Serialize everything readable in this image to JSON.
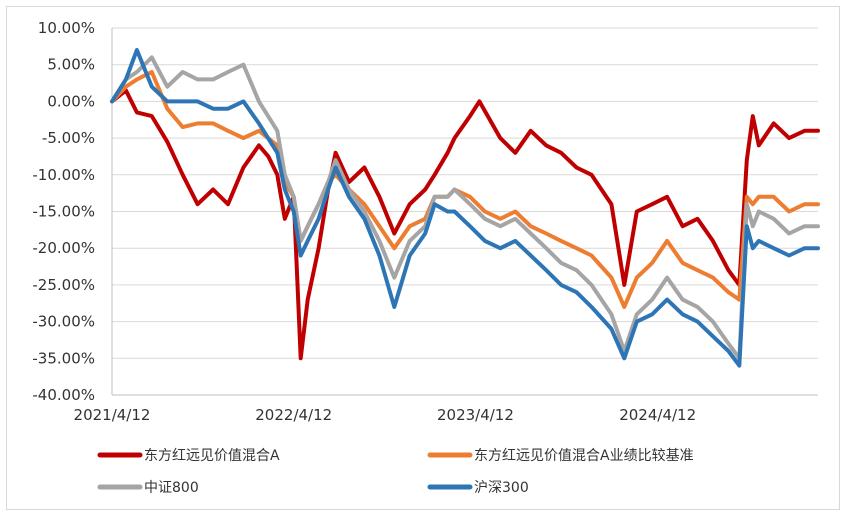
{
  "chart_data": {
    "type": "line",
    "title": "",
    "xlabel": "",
    "ylabel": "",
    "ylim": [
      -40,
      10
    ],
    "y_ticks": [
      10,
      5,
      0,
      -5,
      -10,
      -15,
      -20,
      -25,
      -30,
      -35,
      -40
    ],
    "y_tick_labels": [
      "10.00%",
      "5.00%",
      "0.00%",
      "-5.00%",
      "-10.00%",
      "-15.00%",
      "-20.00%",
      "-25.00%",
      "-30.00%",
      "-35.00%",
      "-40.00%"
    ],
    "x_range": [
      "2021-04-12",
      "2025-02-28"
    ],
    "x_ticks": [
      "2021-04-12",
      "2022-04-12",
      "2023-04-12",
      "2024-04-12"
    ],
    "x_tick_labels": [
      "2021/4/12",
      "2022/4/12",
      "2023/4/12",
      "2024/4/12"
    ],
    "grid": "horizontal",
    "legend_position": "bottom",
    "series": [
      {
        "name": "东方红远见价值混合A",
        "color": "#c00000",
        "points": [
          [
            "2021-04-12",
            0
          ],
          [
            "2021-05-10",
            1.5
          ],
          [
            "2021-06-01",
            -1.5
          ],
          [
            "2021-07-01",
            -2
          ],
          [
            "2021-08-01",
            -5.5
          ],
          [
            "2021-09-01",
            -10
          ],
          [
            "2021-10-01",
            -14
          ],
          [
            "2021-11-01",
            -12
          ],
          [
            "2021-12-01",
            -14
          ],
          [
            "2022-01-01",
            -9
          ],
          [
            "2022-02-01",
            -6
          ],
          [
            "2022-02-20",
            -7.5
          ],
          [
            "2022-03-10",
            -10
          ],
          [
            "2022-03-25",
            -16
          ],
          [
            "2022-04-12",
            -13
          ],
          [
            "2022-04-26",
            -35
          ],
          [
            "2022-05-10",
            -27
          ],
          [
            "2022-06-01",
            -20
          ],
          [
            "2022-06-20",
            -12
          ],
          [
            "2022-07-05",
            -7
          ],
          [
            "2022-08-01",
            -11
          ],
          [
            "2022-09-01",
            -9
          ],
          [
            "2022-10-01",
            -13
          ],
          [
            "2022-10-31",
            -18
          ],
          [
            "2022-12-01",
            -14
          ],
          [
            "2023-01-01",
            -12
          ],
          [
            "2023-01-20",
            -10
          ],
          [
            "2023-02-15",
            -7
          ],
          [
            "2023-03-01",
            -5
          ],
          [
            "2023-04-01",
            -2
          ],
          [
            "2023-04-20",
            0
          ],
          [
            "2023-05-15",
            -3
          ],
          [
            "2023-06-01",
            -5
          ],
          [
            "2023-07-01",
            -7
          ],
          [
            "2023-08-01",
            -4
          ],
          [
            "2023-09-01",
            -6
          ],
          [
            "2023-10-01",
            -7
          ],
          [
            "2023-11-01",
            -9
          ],
          [
            "2023-12-01",
            -10
          ],
          [
            "2024-01-10",
            -14
          ],
          [
            "2024-02-05",
            -25
          ],
          [
            "2024-03-01",
            -15
          ],
          [
            "2024-04-01",
            -14
          ],
          [
            "2024-05-01",
            -13
          ],
          [
            "2024-06-01",
            -17
          ],
          [
            "2024-07-01",
            -16
          ],
          [
            "2024-08-01",
            -19
          ],
          [
            "2024-09-01",
            -23
          ],
          [
            "2024-09-23",
            -25
          ],
          [
            "2024-10-08",
            -8
          ],
          [
            "2024-10-20",
            -2
          ],
          [
            "2024-11-01",
            -6
          ],
          [
            "2024-12-01",
            -3
          ],
          [
            "2025-01-01",
            -5
          ],
          [
            "2025-02-01",
            -4
          ],
          [
            "2025-02-28",
            -4
          ]
        ]
      },
      {
        "name": "东方红远见价值混合A业绩比较基准",
        "color": "#ed7d31",
        "points": [
          [
            "2021-04-12",
            0
          ],
          [
            "2021-05-10",
            2
          ],
          [
            "2021-06-01",
            3
          ],
          [
            "2021-07-01",
            4
          ],
          [
            "2021-08-01",
            -1
          ],
          [
            "2021-09-01",
            -3.5
          ],
          [
            "2021-10-01",
            -3
          ],
          [
            "2021-11-01",
            -3
          ],
          [
            "2021-12-01",
            -4
          ],
          [
            "2022-01-01",
            -5
          ],
          [
            "2022-02-01",
            -4
          ],
          [
            "2022-03-10",
            -6
          ],
          [
            "2022-03-25",
            -11
          ],
          [
            "2022-04-12",
            -13
          ],
          [
            "2022-04-26",
            -19
          ],
          [
            "2022-05-10",
            -17
          ],
          [
            "2022-06-01",
            -14
          ],
          [
            "2022-06-20",
            -11
          ],
          [
            "2022-07-05",
            -10
          ],
          [
            "2022-08-01",
            -12
          ],
          [
            "2022-09-01",
            -14
          ],
          [
            "2022-10-01",
            -17
          ],
          [
            "2022-10-31",
            -20
          ],
          [
            "2022-12-01",
            -17
          ],
          [
            "2023-01-01",
            -16
          ],
          [
            "2023-01-20",
            -13
          ],
          [
            "2023-02-15",
            -13
          ],
          [
            "2023-03-01",
            -12
          ],
          [
            "2023-04-01",
            -13
          ],
          [
            "2023-05-01",
            -15
          ],
          [
            "2023-06-01",
            -16
          ],
          [
            "2023-07-01",
            -15
          ],
          [
            "2023-08-01",
            -17
          ],
          [
            "2023-09-01",
            -18
          ],
          [
            "2023-10-01",
            -19
          ],
          [
            "2023-11-01",
            -20
          ],
          [
            "2023-12-01",
            -21
          ],
          [
            "2024-01-10",
            -24
          ],
          [
            "2024-02-05",
            -28
          ],
          [
            "2024-03-01",
            -24
          ],
          [
            "2024-04-01",
            -22
          ],
          [
            "2024-05-01",
            -19
          ],
          [
            "2024-06-01",
            -22
          ],
          [
            "2024-07-01",
            -23
          ],
          [
            "2024-08-01",
            -24
          ],
          [
            "2024-09-01",
            -26
          ],
          [
            "2024-09-23",
            -27
          ],
          [
            "2024-10-08",
            -13
          ],
          [
            "2024-10-20",
            -14
          ],
          [
            "2024-11-01",
            -13
          ],
          [
            "2024-12-01",
            -13
          ],
          [
            "2025-01-01",
            -15
          ],
          [
            "2025-02-01",
            -14
          ],
          [
            "2025-02-28",
            -14
          ]
        ]
      },
      {
        "name": "中证800",
        "color": "#a5a5a5",
        "points": [
          [
            "2021-04-12",
            0
          ],
          [
            "2021-05-10",
            3
          ],
          [
            "2021-06-01",
            4
          ],
          [
            "2021-07-01",
            6
          ],
          [
            "2021-08-01",
            2
          ],
          [
            "2021-09-01",
            4
          ],
          [
            "2021-10-01",
            3
          ],
          [
            "2021-11-01",
            3
          ],
          [
            "2021-12-01",
            4
          ],
          [
            "2022-01-01",
            5
          ],
          [
            "2022-02-01",
            0
          ],
          [
            "2022-03-10",
            -4
          ],
          [
            "2022-03-25",
            -10
          ],
          [
            "2022-04-12",
            -13
          ],
          [
            "2022-04-26",
            -19
          ],
          [
            "2022-05-10",
            -17
          ],
          [
            "2022-06-01",
            -14
          ],
          [
            "2022-06-20",
            -11
          ],
          [
            "2022-07-05",
            -8
          ],
          [
            "2022-08-01",
            -12
          ],
          [
            "2022-09-01",
            -15
          ],
          [
            "2022-10-01",
            -19
          ],
          [
            "2022-10-31",
            -24
          ],
          [
            "2022-12-01",
            -19
          ],
          [
            "2023-01-01",
            -17
          ],
          [
            "2023-01-20",
            -13
          ],
          [
            "2023-02-15",
            -13
          ],
          [
            "2023-03-01",
            -12
          ],
          [
            "2023-04-01",
            -14
          ],
          [
            "2023-05-01",
            -16
          ],
          [
            "2023-06-01",
            -17
          ],
          [
            "2023-07-01",
            -16
          ],
          [
            "2023-08-01",
            -18
          ],
          [
            "2023-09-01",
            -20
          ],
          [
            "2023-10-01",
            -22
          ],
          [
            "2023-11-01",
            -23
          ],
          [
            "2023-12-01",
            -25
          ],
          [
            "2024-01-10",
            -29
          ],
          [
            "2024-02-05",
            -34
          ],
          [
            "2024-03-01",
            -29
          ],
          [
            "2024-04-01",
            -27
          ],
          [
            "2024-05-01",
            -24
          ],
          [
            "2024-06-01",
            -27
          ],
          [
            "2024-07-01",
            -28
          ],
          [
            "2024-08-01",
            -30
          ],
          [
            "2024-09-01",
            -33
          ],
          [
            "2024-09-23",
            -35
          ],
          [
            "2024-10-08",
            -14
          ],
          [
            "2024-10-20",
            -17
          ],
          [
            "2024-11-01",
            -15
          ],
          [
            "2024-12-01",
            -16
          ],
          [
            "2025-01-01",
            -18
          ],
          [
            "2025-02-01",
            -17
          ],
          [
            "2025-02-28",
            -17
          ]
        ]
      },
      {
        "name": "沪深300",
        "color": "#2e75b6",
        "points": [
          [
            "2021-04-12",
            0
          ],
          [
            "2021-05-10",
            3
          ],
          [
            "2021-06-01",
            7
          ],
          [
            "2021-07-01",
            2
          ],
          [
            "2021-08-01",
            0
          ],
          [
            "2021-09-01",
            0
          ],
          [
            "2021-10-01",
            0
          ],
          [
            "2021-11-01",
            -1
          ],
          [
            "2021-12-01",
            -1
          ],
          [
            "2022-01-01",
            0
          ],
          [
            "2022-02-01",
            -3
          ],
          [
            "2022-03-10",
            -7
          ],
          [
            "2022-03-25",
            -12
          ],
          [
            "2022-04-12",
            -15
          ],
          [
            "2022-04-26",
            -21
          ],
          [
            "2022-05-10",
            -19
          ],
          [
            "2022-06-01",
            -16
          ],
          [
            "2022-06-20",
            -12
          ],
          [
            "2022-07-05",
            -9
          ],
          [
            "2022-08-01",
            -13
          ],
          [
            "2022-09-01",
            -16
          ],
          [
            "2022-10-01",
            -21
          ],
          [
            "2022-10-31",
            -28
          ],
          [
            "2022-12-01",
            -21
          ],
          [
            "2023-01-01",
            -18
          ],
          [
            "2023-01-20",
            -14
          ],
          [
            "2023-02-15",
            -15
          ],
          [
            "2023-03-01",
            -15
          ],
          [
            "2023-04-01",
            -17
          ],
          [
            "2023-05-01",
            -19
          ],
          [
            "2023-06-01",
            -20
          ],
          [
            "2023-07-01",
            -19
          ],
          [
            "2023-08-01",
            -21
          ],
          [
            "2023-09-01",
            -23
          ],
          [
            "2023-10-01",
            -25
          ],
          [
            "2023-11-01",
            -26
          ],
          [
            "2023-12-01",
            -28
          ],
          [
            "2024-01-10",
            -31
          ],
          [
            "2024-02-05",
            -35
          ],
          [
            "2024-03-01",
            -30
          ],
          [
            "2024-04-01",
            -29
          ],
          [
            "2024-05-01",
            -27
          ],
          [
            "2024-06-01",
            -29
          ],
          [
            "2024-07-01",
            -30
          ],
          [
            "2024-08-01",
            -32
          ],
          [
            "2024-09-01",
            -34
          ],
          [
            "2024-09-23",
            -36
          ],
          [
            "2024-10-08",
            -17
          ],
          [
            "2024-10-20",
            -20
          ],
          [
            "2024-11-01",
            -19
          ],
          [
            "2024-12-01",
            -20
          ],
          [
            "2025-01-01",
            -21
          ],
          [
            "2025-02-01",
            -20
          ],
          [
            "2025-02-28",
            -20
          ]
        ]
      }
    ]
  }
}
